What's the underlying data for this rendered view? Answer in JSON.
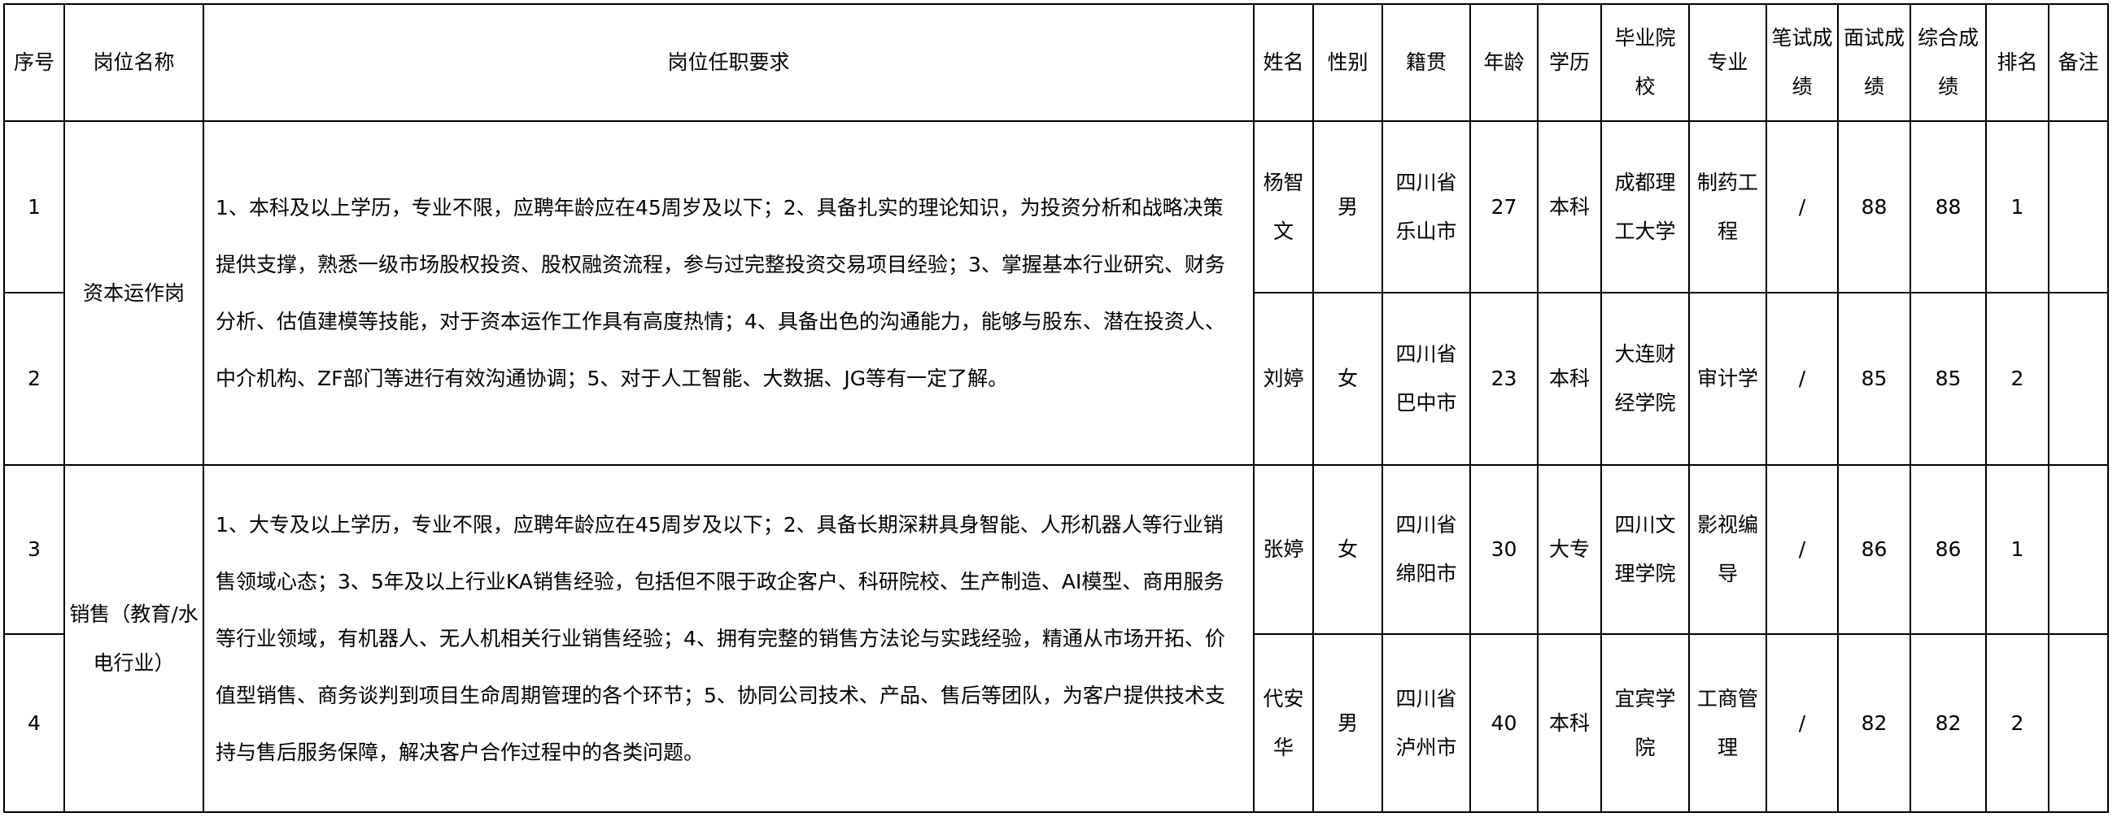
{
  "headers": [
    "序号",
    "岗位名称",
    "岗位任职要求",
    "姓名",
    "性别",
    "籍贯",
    "年龄",
    "学历",
    "毕业院校",
    "专业",
    "笔试成绩",
    "面试成绩",
    "综合成绩",
    "排名",
    "备注"
  ],
  "groups": [
    {
      "position": "资本运作岗",
      "requirements": "1、本科及以上学历，专业不限，应聘年龄应在45周岁及以下；2、具备扎实的理论知识，为投资分析和战略决策提供支撑，熟悉一级市场股权投资、股权融资流程，参与过完整投资交易项目经验；3、掌握基本行业研究、财务分析、估值建模等技能，对于资本运作工作具有高度热情；4、具备出色的沟通能力，能够与股东、潜在投资人、中介机构、ZF部门等进行有效沟通协调；5、对于人工智能、大数据、JG等有一定了解。",
      "rows": [
        {
          "no": "1",
          "name": "杨智文",
          "gender": "男",
          "origin": "四川省乐山市",
          "age": "27",
          "edu": "本科",
          "school": "成都理工大学",
          "major": "制药工程",
          "written": "/",
          "interview": "88",
          "total": "88",
          "rank": "1",
          "note": ""
        },
        {
          "no": "2",
          "name": "刘婷",
          "gender": "女",
          "origin": "四川省巴中市",
          "age": "23",
          "edu": "本科",
          "school": "大连财经学院",
          "major": "审计学",
          "written": "/",
          "interview": "85",
          "total": "85",
          "rank": "2",
          "note": ""
        }
      ]
    },
    {
      "position": "销售（教育/水电行业）",
      "requirements": "1、大专及以上学历，专业不限，应聘年龄应在45周岁及以下；2、具备长期深耕具身智能、人形机器人等行业销售领域心态；3、5年及以上行业KA销售经验，包括但不限于政企客户、科研院校、生产制造、AI模型、商用服务等行业领域，有机器人、无人机相关行业销售经验；4、拥有完整的销售方法论与实践经验，精通从市场开拓、价值型销售、商务谈判到项目生命周期管理的各个环节；5、协同公司技术、产品、售后等团队，为客户提供技术支持与售后服务保障，解决客户合作过程中的各类问题。",
      "rows": [
        {
          "no": "3",
          "name": "张婷",
          "gender": "女",
          "origin": "四川省绵阳市",
          "age": "30",
          "edu": "大专",
          "school": "四川文理学院",
          "major": "影视编导",
          "written": "/",
          "interview": "86",
          "total": "86",
          "rank": "1",
          "note": ""
        },
        {
          "no": "4",
          "name": "代安华",
          "gender": "男",
          "origin": "四川省泸州市",
          "age": "40",
          "edu": "本科",
          "school": "宜宾学院",
          "major": "工商管理",
          "written": "/",
          "interview": "82",
          "total": "82",
          "rank": "2",
          "note": ""
        }
      ]
    }
  ]
}
